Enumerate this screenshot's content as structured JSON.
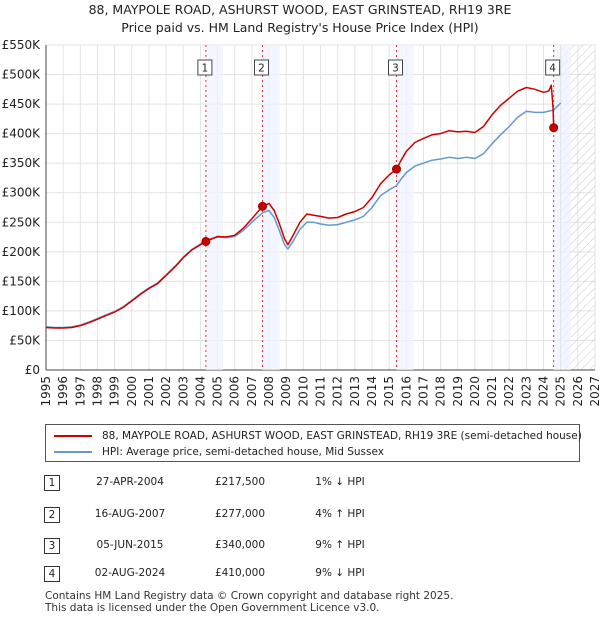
{
  "chart_data": {
    "type": "line",
    "title": "88, MAYPOLE ROAD, ASHURST WOOD, EAST GRINSTEAD, RH19 3RE",
    "subtitle": "Price paid vs. HM Land Registry's House Price Index (HPI)",
    "xlim": [
      1995,
      2027
    ],
    "ylim": [
      0,
      550000
    ],
    "x_ticks": [
      "1995",
      "1996",
      "1997",
      "1998",
      "1999",
      "2000",
      "2001",
      "2002",
      "2003",
      "2004",
      "2005",
      "2006",
      "2007",
      "2008",
      "2009",
      "2010",
      "2011",
      "2012",
      "2013",
      "2014",
      "2015",
      "2016",
      "2017",
      "2018",
      "2019",
      "2020",
      "2021",
      "2022",
      "2023",
      "2024",
      "2025",
      "2026",
      "2027"
    ],
    "y_ticks": [
      {
        "value": 0,
        "label": "£0"
      },
      {
        "value": 50000,
        "label": "£50K"
      },
      {
        "value": 100000,
        "label": "£100K"
      },
      {
        "value": 150000,
        "label": "£150K"
      },
      {
        "value": 200000,
        "label": "£200K"
      },
      {
        "value": 250000,
        "label": "£250K"
      },
      {
        "value": 300000,
        "label": "£300K"
      },
      {
        "value": 350000,
        "label": "£350K"
      },
      {
        "value": 400000,
        "label": "£400K"
      },
      {
        "value": 450000,
        "label": "£450K"
      },
      {
        "value": 500000,
        "label": "£500K"
      },
      {
        "value": 550000,
        "label": "£550K"
      }
    ],
    "grid": true,
    "hatched_future_from": 2025.0,
    "series": [
      {
        "name": "88, MAYPOLE ROAD, ASHURST WOOD, EAST GRINSTEAD, RH19 3RE (semi-detached house)",
        "color": "#cc0000",
        "points": [
          [
            1995.0,
            72000
          ],
          [
            1995.5,
            71000
          ],
          [
            1996.0,
            71000
          ],
          [
            1996.5,
            72000
          ],
          [
            1997.0,
            75000
          ],
          [
            1997.5,
            80000
          ],
          [
            1998.0,
            86000
          ],
          [
            1998.5,
            92000
          ],
          [
            1999.0,
            98000
          ],
          [
            1999.5,
            106000
          ],
          [
            2000.0,
            117000
          ],
          [
            2000.5,
            128000
          ],
          [
            2001.0,
            138000
          ],
          [
            2001.5,
            146000
          ],
          [
            2002.0,
            160000
          ],
          [
            2002.5,
            174000
          ],
          [
            2003.0,
            190000
          ],
          [
            2003.5,
            203000
          ],
          [
            2004.0,
            212000
          ],
          [
            2004.32,
            217500
          ],
          [
            2004.5,
            220000
          ],
          [
            2005.0,
            226000
          ],
          [
            2005.5,
            225000
          ],
          [
            2006.0,
            228000
          ],
          [
            2006.5,
            240000
          ],
          [
            2007.0,
            256000
          ],
          [
            2007.62,
            277000
          ],
          [
            2008.0,
            282000
          ],
          [
            2008.3,
            270000
          ],
          [
            2008.6,
            248000
          ],
          [
            2008.9,
            222000
          ],
          [
            2009.1,
            212000
          ],
          [
            2009.4,
            228000
          ],
          [
            2009.8,
            250000
          ],
          [
            2010.2,
            264000
          ],
          [
            2010.6,
            262000
          ],
          [
            2011.0,
            260000
          ],
          [
            2011.5,
            257000
          ],
          [
            2012.0,
            258000
          ],
          [
            2012.5,
            264000
          ],
          [
            2013.0,
            268000
          ],
          [
            2013.5,
            275000
          ],
          [
            2014.0,
            292000
          ],
          [
            2014.5,
            315000
          ],
          [
            2015.0,
            330000
          ],
          [
            2015.43,
            340000
          ],
          [
            2015.7,
            355000
          ],
          [
            2016.0,
            370000
          ],
          [
            2016.5,
            385000
          ],
          [
            2017.0,
            392000
          ],
          [
            2017.5,
            398000
          ],
          [
            2018.0,
            400000
          ],
          [
            2018.5,
            405000
          ],
          [
            2019.0,
            403000
          ],
          [
            2019.5,
            404000
          ],
          [
            2020.0,
            402000
          ],
          [
            2020.5,
            412000
          ],
          [
            2021.0,
            432000
          ],
          [
            2021.5,
            448000
          ],
          [
            2022.0,
            460000
          ],
          [
            2022.5,
            472000
          ],
          [
            2023.0,
            478000
          ],
          [
            2023.5,
            475000
          ],
          [
            2024.0,
            470000
          ],
          [
            2024.3,
            472000
          ],
          [
            2024.45,
            482000
          ],
          [
            2024.55,
            445000
          ],
          [
            2024.59,
            410000
          ],
          [
            2024.75,
            412000
          ]
        ]
      },
      {
        "name": "HPI: Average price, semi-detached house, Mid Sussex",
        "color": "#6699cc",
        "points": [
          [
            1995.0,
            73000
          ],
          [
            1995.5,
            72000
          ],
          [
            1996.0,
            72000
          ],
          [
            1996.5,
            73000
          ],
          [
            1997.0,
            76000
          ],
          [
            1997.5,
            81000
          ],
          [
            1998.0,
            87000
          ],
          [
            1998.5,
            93000
          ],
          [
            1999.0,
            99000
          ],
          [
            1999.5,
            107000
          ],
          [
            2000.0,
            118000
          ],
          [
            2000.5,
            129000
          ],
          [
            2001.0,
            139000
          ],
          [
            2001.5,
            147000
          ],
          [
            2002.0,
            161000
          ],
          [
            2002.5,
            175000
          ],
          [
            2003.0,
            191000
          ],
          [
            2003.5,
            204000
          ],
          [
            2004.0,
            213000
          ],
          [
            2004.32,
            219500
          ],
          [
            2004.5,
            221000
          ],
          [
            2005.0,
            225000
          ],
          [
            2005.5,
            224000
          ],
          [
            2006.0,
            226000
          ],
          [
            2006.5,
            236000
          ],
          [
            2007.0,
            250000
          ],
          [
            2007.62,
            266000
          ],
          [
            2008.0,
            270000
          ],
          [
            2008.3,
            258000
          ],
          [
            2008.6,
            236000
          ],
          [
            2008.9,
            212000
          ],
          [
            2009.1,
            205000
          ],
          [
            2009.4,
            218000
          ],
          [
            2009.8,
            238000
          ],
          [
            2010.2,
            250000
          ],
          [
            2010.6,
            250000
          ],
          [
            2011.0,
            247000
          ],
          [
            2011.5,
            245000
          ],
          [
            2012.0,
            246000
          ],
          [
            2012.5,
            250000
          ],
          [
            2013.0,
            254000
          ],
          [
            2013.5,
            260000
          ],
          [
            2014.0,
            275000
          ],
          [
            2014.5,
            295000
          ],
          [
            2015.0,
            305000
          ],
          [
            2015.43,
            312000
          ],
          [
            2015.7,
            323000
          ],
          [
            2016.0,
            334000
          ],
          [
            2016.5,
            345000
          ],
          [
            2017.0,
            350000
          ],
          [
            2017.5,
            355000
          ],
          [
            2018.0,
            357000
          ],
          [
            2018.5,
            360000
          ],
          [
            2019.0,
            358000
          ],
          [
            2019.5,
            360000
          ],
          [
            2020.0,
            358000
          ],
          [
            2020.5,
            366000
          ],
          [
            2021.0,
            383000
          ],
          [
            2021.5,
            398000
          ],
          [
            2022.0,
            412000
          ],
          [
            2022.5,
            428000
          ],
          [
            2023.0,
            438000
          ],
          [
            2023.5,
            436000
          ],
          [
            2024.0,
            436000
          ],
          [
            2024.59,
            440000
          ],
          [
            2025.0,
            452000
          ]
        ]
      }
    ],
    "events": [
      {
        "id": "1",
        "x": 2004.32,
        "y": 217500
      },
      {
        "id": "2",
        "x": 2007.62,
        "y": 277000
      },
      {
        "id": "3",
        "x": 2015.43,
        "y": 340000
      },
      {
        "id": "4",
        "x": 2024.59,
        "y": 410000
      }
    ]
  },
  "legend": [
    {
      "label": "88, MAYPOLE ROAD, ASHURST WOOD, EAST GRINSTEAD, RH19 3RE (semi-detached house)",
      "color": "#cc0000"
    },
    {
      "label": "HPI: Average price, semi-detached house, Mid Sussex",
      "color": "#6699cc"
    }
  ],
  "transactions": [
    {
      "num": "1",
      "date": "27-APR-2004",
      "price": "£217,500",
      "hpi": "1% ↓ HPI"
    },
    {
      "num": "2",
      "date": "16-AUG-2007",
      "price": "£277,000",
      "hpi": "4% ↑ HPI"
    },
    {
      "num": "3",
      "date": "05-JUN-2015",
      "price": "£340,000",
      "hpi": "9% ↑ HPI"
    },
    {
      "num": "4",
      "date": "02-AUG-2024",
      "price": "£410,000",
      "hpi": "9% ↓ HPI"
    }
  ],
  "footer": {
    "line1": "Contains HM Land Registry data © Crown copyright and database right 2025.",
    "line2": "This data is licensed under the Open Government Licence v3.0."
  }
}
